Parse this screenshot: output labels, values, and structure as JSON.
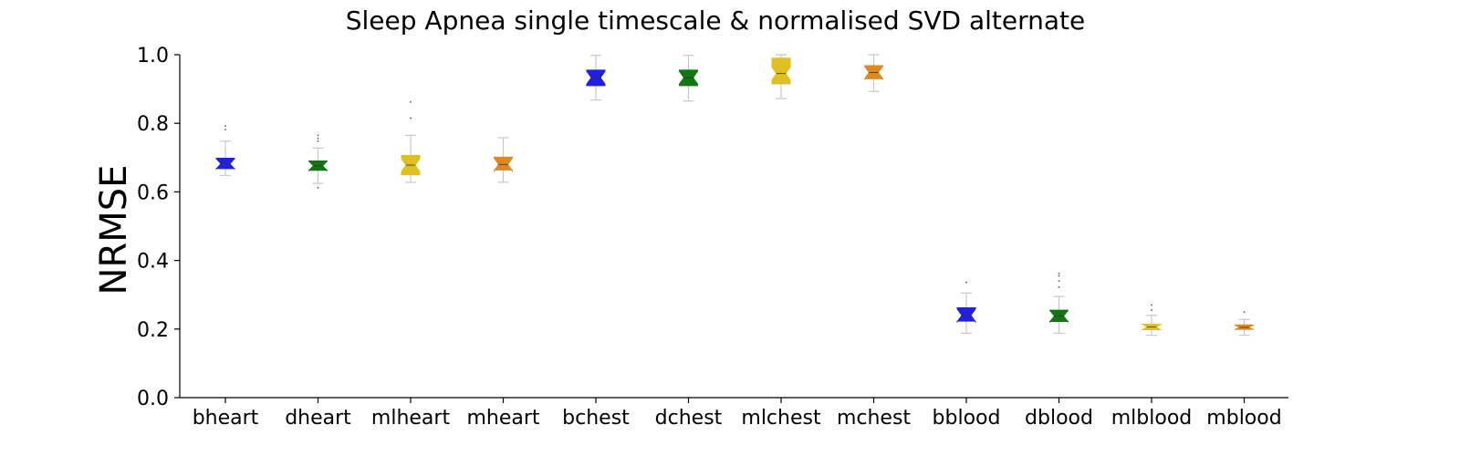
{
  "chart_data": {
    "type": "box",
    "title": "Sleep Apnea single timescale & normalised SVD alternate",
    "xlabel": "",
    "ylabel": "NRMSE",
    "ylim": [
      0.0,
      1.0
    ],
    "yticks": [
      "0.0",
      "0.2",
      "0.4",
      "0.6",
      "0.8",
      "1.0"
    ],
    "notched": true,
    "grid": false,
    "categories": [
      "bheart",
      "dheart",
      "mlheart",
      "mheart",
      "bchest",
      "dchest",
      "mlchest",
      "mchest",
      "bblood",
      "dblood",
      "mlblood",
      "mblood"
    ],
    "colors": [
      "#2020e0",
      "#117711",
      "#e0c020",
      "#e08820",
      "#2020e0",
      "#117711",
      "#e0c020",
      "#e08820",
      "#2020e0",
      "#117711",
      "#e0c020",
      "#e08820"
    ],
    "boxes": [
      {
        "label": "bheart",
        "whislo": 0.648,
        "q1": 0.668,
        "med": 0.682,
        "q3": 0.698,
        "whishi": 0.748,
        "fliers": [
          0.782,
          0.792
        ]
      },
      {
        "label": "dheart",
        "whislo": 0.625,
        "q1": 0.663,
        "med": 0.676,
        "q3": 0.69,
        "whishi": 0.728,
        "fliers": [
          0.612,
          0.748,
          0.756,
          0.765
        ]
      },
      {
        "label": "mlheart",
        "whislo": 0.628,
        "q1": 0.65,
        "med": 0.678,
        "q3": 0.706,
        "whishi": 0.765,
        "fliers": [
          0.815,
          0.862
        ]
      },
      {
        "label": "mheart",
        "whislo": 0.628,
        "q1": 0.664,
        "med": 0.68,
        "q3": 0.701,
        "whishi": 0.758,
        "fliers": []
      },
      {
        "label": "bchest",
        "whislo": 0.868,
        "q1": 0.91,
        "med": 0.933,
        "q3": 0.955,
        "whishi": 0.998,
        "fliers": []
      },
      {
        "label": "dchest",
        "whislo": 0.865,
        "q1": 0.91,
        "med": 0.933,
        "q3": 0.955,
        "whishi": 0.998,
        "fliers": []
      },
      {
        "label": "mlchest",
        "whislo": 0.872,
        "q1": 0.915,
        "med": 0.945,
        "q3": 0.99,
        "whishi": 1.0,
        "fliers": []
      },
      {
        "label": "mchest",
        "whislo": 0.893,
        "q1": 0.93,
        "med": 0.948,
        "q3": 0.968,
        "whishi": 1.0,
        "fliers": []
      },
      {
        "label": "bblood",
        "whislo": 0.188,
        "q1": 0.223,
        "med": 0.24,
        "q3": 0.262,
        "whishi": 0.305,
        "fliers": [
          0.336
        ]
      },
      {
        "label": "dblood",
        "whislo": 0.188,
        "q1": 0.222,
        "med": 0.238,
        "q3": 0.255,
        "whishi": 0.295,
        "fliers": [
          0.322,
          0.34,
          0.355,
          0.362
        ]
      },
      {
        "label": "mlblood",
        "whislo": 0.182,
        "q1": 0.198,
        "med": 0.206,
        "q3": 0.214,
        "whishi": 0.24,
        "fliers": [
          0.255,
          0.27
        ]
      },
      {
        "label": "mblood",
        "whislo": 0.182,
        "q1": 0.199,
        "med": 0.205,
        "q3": 0.212,
        "whishi": 0.228,
        "fliers": [
          0.25
        ]
      }
    ]
  }
}
